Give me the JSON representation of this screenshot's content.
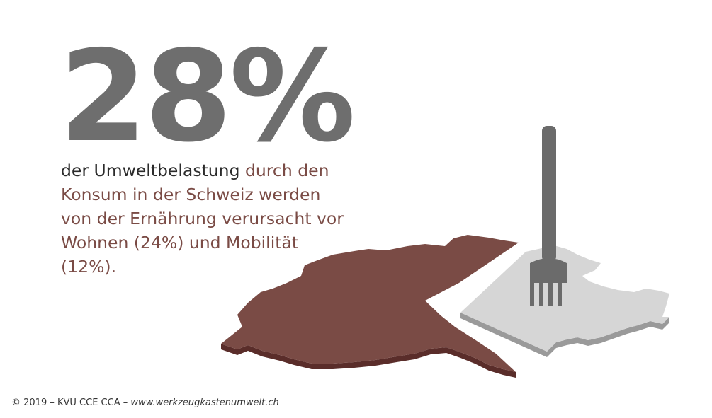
{
  "headline": {
    "value": "28%"
  },
  "description": {
    "part_dark": "der Umweltbelastung",
    "part_accent": " durch den Konsum in der Schweiz werden von der Ernährung verursacht vor Wohnen (24%) und Mobilität (12%)."
  },
  "colors": {
    "headline": "#6e6e6e",
    "accent": "#7a4b45",
    "map_brown_top": "#7a4b45",
    "map_brown_side": "#5a2d2a",
    "map_grey_top": "#d6d6d6",
    "map_grey_side": "#9a9a9a",
    "fork": "#6b6b6b"
  },
  "illustration": {
    "brown_piece": "switzerland-map-brown-piece",
    "grey_piece": "switzerland-map-grey-piece",
    "icon": "fork-icon"
  },
  "footer": {
    "copyright": "© 2019 – KVU CCE CCA – ",
    "url": "www.werkzeugkastenumwelt.ch"
  }
}
